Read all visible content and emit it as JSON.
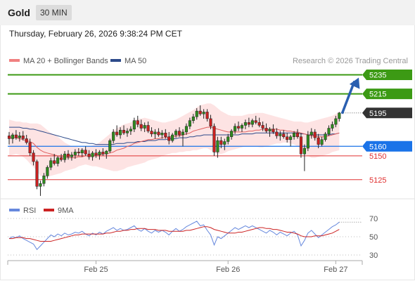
{
  "header": {
    "instrument": "Gold",
    "timeframe": "30 MIN",
    "timestamp": "Thursday, February 26, 2026 9:38:24 PM CET"
  },
  "colors": {
    "bollinger": "#f08080",
    "ma50": "#2d4a8a",
    "green": "#3c9a14",
    "red": "#e03030",
    "blue": "#1a73e8",
    "dark": "#333333",
    "arrow": "#2a5fb0",
    "rsi": "#6688dd",
    "ma9": "#cc2222"
  },
  "chart_data": [
    {
      "type": "candlestick",
      "legend": [
        {
          "label": "MA 20 + Bollinger Bands",
          "color": "#f08080"
        },
        {
          "label": "MA 50",
          "color": "#2d4a8a"
        }
      ],
      "credit": "Research © 2026 Trading Central",
      "ylim": [
        5102,
        5242
      ],
      "levels": [
        {
          "value": 5235,
          "label": "5235",
          "kind": "resistance-tag"
        },
        {
          "value": 5215,
          "label": "5215",
          "kind": "resistance-tag"
        },
        {
          "value": 5195,
          "label": "5195",
          "kind": "last-price-tag"
        },
        {
          "value": 5160,
          "label": "5160",
          "kind": "pivot-tag"
        },
        {
          "value": 5150,
          "label": "5150",
          "kind": "support-text"
        },
        {
          "value": 5125,
          "label": "5125",
          "kind": "support-text"
        }
      ],
      "forecast_arrow": {
        "from": 5195,
        "to": 5235
      },
      "ohlc": [
        [
          5171,
          5175,
          5162,
          5168
        ],
        [
          5168,
          5174,
          5163,
          5172
        ],
        [
          5172,
          5177,
          5167,
          5169
        ],
        [
          5169,
          5175,
          5165,
          5171
        ],
        [
          5171,
          5176,
          5166,
          5168
        ],
        [
          5168,
          5172,
          5162,
          5164
        ],
        [
          5164,
          5168,
          5150,
          5153
        ],
        [
          5153,
          5156,
          5140,
          5144
        ],
        [
          5144,
          5146,
          5115,
          5118
        ],
        [
          5118,
          5124,
          5108,
          5121
        ],
        [
          5121,
          5132,
          5118,
          5129
        ],
        [
          5129,
          5140,
          5126,
          5138
        ],
        [
          5138,
          5148,
          5135,
          5145
        ],
        [
          5145,
          5152,
          5140,
          5142
        ],
        [
          5142,
          5150,
          5139,
          5148
        ],
        [
          5148,
          5152,
          5144,
          5146
        ],
        [
          5146,
          5155,
          5143,
          5152
        ],
        [
          5152,
          5156,
          5146,
          5149
        ],
        [
          5149,
          5154,
          5145,
          5151
        ],
        [
          5151,
          5157,
          5147,
          5154
        ],
        [
          5154,
          5158,
          5150,
          5153
        ],
        [
          5153,
          5158,
          5149,
          5156
        ],
        [
          5156,
          5160,
          5150,
          5152
        ],
        [
          5152,
          5156,
          5146,
          5149
        ],
        [
          5149,
          5155,
          5145,
          5153
        ],
        [
          5153,
          5157,
          5148,
          5151
        ],
        [
          5151,
          5156,
          5146,
          5154
        ],
        [
          5154,
          5158,
          5150,
          5152
        ],
        [
          5152,
          5156,
          5147,
          5155
        ],
        [
          5155,
          5168,
          5153,
          5166
        ],
        [
          5166,
          5178,
          5163,
          5175
        ],
        [
          5175,
          5182,
          5170,
          5172
        ],
        [
          5172,
          5180,
          5168,
          5177
        ],
        [
          5177,
          5182,
          5172,
          5174
        ],
        [
          5174,
          5179,
          5170,
          5176
        ],
        [
          5176,
          5181,
          5172,
          5178
        ],
        [
          5178,
          5190,
          5175,
          5187
        ],
        [
          5187,
          5192,
          5180,
          5183
        ],
        [
          5183,
          5188,
          5176,
          5179
        ],
        [
          5179,
          5185,
          5175,
          5182
        ],
        [
          5182,
          5186,
          5174,
          5176
        ],
        [
          5176,
          5180,
          5170,
          5173
        ],
        [
          5173,
          5178,
          5168,
          5175
        ],
        [
          5175,
          5179,
          5170,
          5172
        ],
        [
          5172,
          5177,
          5168,
          5174
        ],
        [
          5174,
          5178,
          5168,
          5170
        ],
        [
          5170,
          5175,
          5162,
          5166
        ],
        [
          5166,
          5174,
          5164,
          5172
        ],
        [
          5172,
          5178,
          5169,
          5176
        ],
        [
          5176,
          5180,
          5170,
          5172
        ],
        [
          5172,
          5178,
          5160,
          5175
        ],
        [
          5175,
          5184,
          5172,
          5181
        ],
        [
          5181,
          5190,
          5178,
          5187
        ],
        [
          5187,
          5194,
          5184,
          5191
        ],
        [
          5191,
          5200,
          5188,
          5197
        ],
        [
          5197,
          5203,
          5192,
          5194
        ],
        [
          5194,
          5199,
          5189,
          5196
        ],
        [
          5196,
          5199,
          5186,
          5189
        ],
        [
          5189,
          5193,
          5178,
          5181
        ],
        [
          5181,
          5184,
          5150,
          5154
        ],
        [
          5154,
          5170,
          5148,
          5166
        ],
        [
          5166,
          5170,
          5158,
          5162
        ],
        [
          5162,
          5168,
          5156,
          5165
        ],
        [
          5165,
          5173,
          5162,
          5170
        ],
        [
          5170,
          5178,
          5167,
          5176
        ],
        [
          5176,
          5184,
          5173,
          5181
        ],
        [
          5181,
          5186,
          5176,
          5179
        ],
        [
          5179,
          5184,
          5175,
          5182
        ],
        [
          5182,
          5188,
          5178,
          5185
        ],
        [
          5185,
          5190,
          5180,
          5183
        ],
        [
          5183,
          5189,
          5180,
          5187
        ],
        [
          5187,
          5192,
          5183,
          5185
        ],
        [
          5185,
          5190,
          5180,
          5182
        ],
        [
          5182,
          5186,
          5176,
          5179
        ],
        [
          5179,
          5184,
          5174,
          5176
        ],
        [
          5176,
          5180,
          5170,
          5178
        ],
        [
          5178,
          5183,
          5173,
          5175
        ],
        [
          5175,
          5179,
          5168,
          5171
        ],
        [
          5171,
          5176,
          5166,
          5173
        ],
        [
          5173,
          5177,
          5168,
          5170
        ],
        [
          5170,
          5174,
          5164,
          5167
        ],
        [
          5167,
          5172,
          5160,
          5170
        ],
        [
          5170,
          5176,
          5167,
          5174
        ],
        [
          5174,
          5178,
          5168,
          5170
        ],
        [
          5170,
          5174,
          5148,
          5152
        ],
        [
          5152,
          5162,
          5134,
          5158
        ],
        [
          5158,
          5176,
          5155,
          5172
        ],
        [
          5172,
          5179,
          5168,
          5175
        ],
        [
          5175,
          5178,
          5166,
          5169
        ],
        [
          5169,
          5173,
          5158,
          5162
        ],
        [
          5162,
          5170,
          5160,
          5167
        ],
        [
          5167,
          5175,
          5165,
          5173
        ],
        [
          5173,
          5182,
          5171,
          5179
        ],
        [
          5179,
          5186,
          5176,
          5183
        ],
        [
          5183,
          5192,
          5180,
          5189
        ],
        [
          5189,
          5196,
          5186,
          5195
        ]
      ],
      "ma20": [
        5169,
        5169,
        5169,
        5168,
        5167,
        5166,
        5165,
        5163,
        5159,
        5156,
        5154,
        5153,
        5152,
        5151,
        5150,
        5149,
        5149,
        5148,
        5148,
        5148,
        5149,
        5149,
        5150,
        5150,
        5150,
        5151,
        5151,
        5152,
        5152,
        5153,
        5154,
        5156,
        5157,
        5158,
        5160,
        5161,
        5163,
        5164,
        5165,
        5166,
        5167,
        5167,
        5168,
        5168,
        5169,
        5169,
        5170,
        5170,
        5171,
        5171,
        5172,
        5173,
        5174,
        5176,
        5177,
        5178,
        5179,
        5180,
        5180,
        5179,
        5178,
        5177,
        5176,
        5175,
        5175,
        5175,
        5175,
        5175,
        5175,
        5176,
        5176,
        5177,
        5177,
        5178,
        5178,
        5178,
        5178,
        5178,
        5177,
        5177,
        5176,
        5176,
        5175,
        5175,
        5174,
        5173,
        5172,
        5171,
        5171,
        5170,
        5170,
        5170,
        5171,
        5172,
        5173,
        5174
      ],
      "ma50": [
        5180,
        5180,
        5180,
        5180,
        5179,
        5179,
        5178,
        5178,
        5177,
        5176,
        5175,
        5174,
        5173,
        5172,
        5171,
        5170,
        5169,
        5168,
        5167,
        5166,
        5165,
        5164,
        5164,
        5163,
        5163,
        5162,
        5162,
        5162,
        5162,
        5162,
        5162,
        5163,
        5163,
        5163,
        5164,
        5164,
        5164,
        5165,
        5165,
        5165,
        5166,
        5166,
        5166,
        5167,
        5167,
        5167,
        5168,
        5168,
        5168,
        5169,
        5169,
        5169,
        5170,
        5170,
        5171,
        5171,
        5172,
        5172,
        5172,
        5172,
        5172,
        5172,
        5172,
        5172,
        5172,
        5172,
        5172,
        5173,
        5173,
        5173,
        5173,
        5174,
        5174,
        5174,
        5174,
        5174,
        5174,
        5174,
        5174,
        5174,
        5174,
        5174,
        5174,
        5174,
        5173,
        5173,
        5172,
        5172,
        5172,
        5172,
        5172,
        5172,
        5172,
        5173,
        5173,
        5174
      ],
      "bb_upper": [
        5188,
        5187,
        5186,
        5186,
        5185,
        5185,
        5184,
        5184,
        5184,
        5183,
        5180,
        5177,
        5174,
        5172,
        5170,
        5167,
        5164,
        5162,
        5160,
        5160,
        5159,
        5159,
        5159,
        5160,
        5161,
        5162,
        5164,
        5167,
        5170,
        5173,
        5176,
        5179,
        5181,
        5183,
        5184,
        5185,
        5187,
        5189,
        5189,
        5190,
        5189,
        5188,
        5187,
        5186,
        5185,
        5185,
        5186,
        5187,
        5188,
        5190,
        5192,
        5194,
        5196,
        5198,
        5201,
        5203,
        5204,
        5205,
        5205,
        5203,
        5200,
        5197,
        5195,
        5193,
        5192,
        5192,
        5192,
        5192,
        5193,
        5194,
        5194,
        5195,
        5195,
        5195,
        5194,
        5193,
        5192,
        5191,
        5190,
        5189,
        5188,
        5187,
        5186,
        5186,
        5186,
        5185,
        5185,
        5186,
        5187,
        5188,
        5189,
        5190,
        5191,
        5192,
        5194,
        5196
      ],
      "bb_lower": [
        5150,
        5151,
        5152,
        5151,
        5149,
        5146,
        5142,
        5138,
        5134,
        5129,
        5128,
        5128,
        5129,
        5130,
        5131,
        5132,
        5134,
        5135,
        5136,
        5137,
        5139,
        5140,
        5141,
        5140,
        5139,
        5139,
        5138,
        5137,
        5136,
        5135,
        5134,
        5134,
        5135,
        5136,
        5138,
        5139,
        5140,
        5141,
        5142,
        5143,
        5145,
        5146,
        5147,
        5148,
        5150,
        5151,
        5152,
        5153,
        5153,
        5154,
        5154,
        5155,
        5155,
        5156,
        5156,
        5157,
        5158,
        5158,
        5156,
        5153,
        5152,
        5152,
        5153,
        5155,
        5156,
        5157,
        5158,
        5159,
        5160,
        5160,
        5160,
        5160,
        5159,
        5159,
        5160,
        5161,
        5162,
        5163,
        5163,
        5164,
        5164,
        5163,
        5162,
        5160,
        5157,
        5152,
        5150,
        5148,
        5148,
        5149,
        5150,
        5151,
        5152,
        5154,
        5155,
        5156
      ],
      "x_tick_labels": [
        {
          "index": 25,
          "label": "Feb 25"
        },
        {
          "index": 63,
          "label": "Feb 26"
        },
        {
          "index": 94,
          "label": "Feb 27"
        }
      ]
    },
    {
      "type": "line",
      "legend": [
        {
          "label": "RSI",
          "color": "#6688dd"
        },
        {
          "label": "9MA",
          "color": "#cc2222"
        }
      ],
      "ylim": [
        20,
        80
      ],
      "y_ticks": [
        70,
        50,
        30
      ],
      "series": [
        {
          "name": "RSI",
          "values": [
            48,
            50,
            49,
            51,
            48,
            46,
            44,
            42,
            36,
            40,
            44,
            48,
            52,
            50,
            53,
            51,
            54,
            52,
            53,
            55,
            54,
            56,
            53,
            51,
            54,
            52,
            55,
            53,
            56,
            58,
            60,
            57,
            59,
            57,
            58,
            60,
            62,
            58,
            56,
            59,
            56,
            54,
            57,
            55,
            57,
            55,
            52,
            56,
            59,
            56,
            58,
            61,
            63,
            65,
            67,
            62,
            63,
            57,
            52,
            41,
            50,
            48,
            51,
            54,
            57,
            60,
            58,
            60,
            62,
            60,
            62,
            60,
            58,
            56,
            54,
            57,
            55,
            52,
            55,
            53,
            51,
            54,
            56,
            52,
            40,
            46,
            54,
            57,
            53,
            49,
            52,
            55,
            58,
            61,
            63,
            66
          ]
        },
        {
          "name": "9MA",
          "values": [
            48,
            48,
            49,
            49,
            49,
            48,
            48,
            47,
            46,
            45,
            45,
            45,
            45,
            46,
            47,
            48,
            49,
            50,
            51,
            52,
            52,
            53,
            53,
            53,
            53,
            53,
            53,
            53,
            54,
            54,
            55,
            56,
            56,
            57,
            57,
            58,
            58,
            59,
            59,
            59,
            58,
            58,
            58,
            57,
            57,
            57,
            56,
            56,
            56,
            56,
            56,
            57,
            57,
            58,
            59,
            60,
            61,
            61,
            60,
            58,
            57,
            56,
            55,
            54,
            54,
            54,
            55,
            55,
            56,
            57,
            58,
            59,
            60,
            60,
            59,
            59,
            58,
            58,
            57,
            56,
            55,
            55,
            54,
            53,
            51,
            50,
            50,
            50,
            51,
            51,
            51,
            52,
            53,
            54,
            56,
            58
          ]
        }
      ]
    }
  ]
}
